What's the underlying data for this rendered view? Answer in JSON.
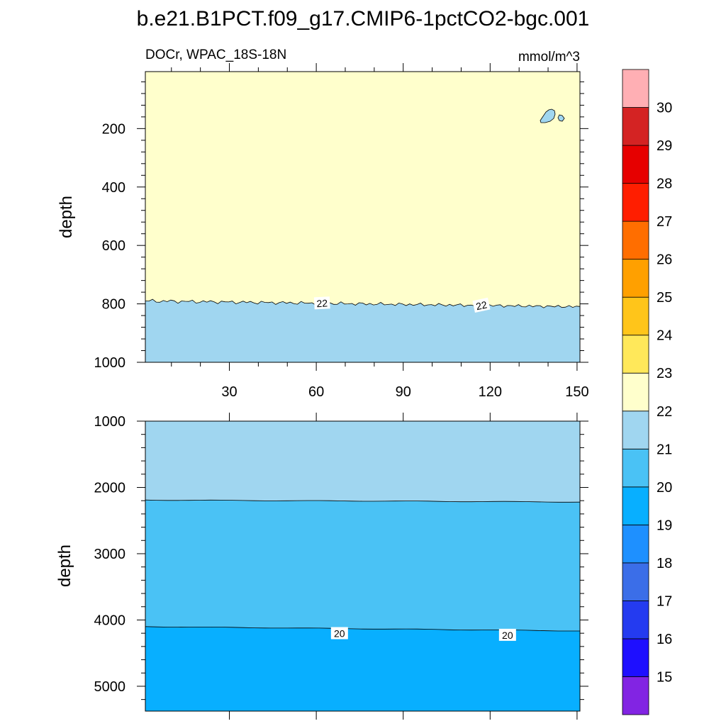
{
  "title": "b.e21.B1PCT.f09_g17.CMIP6-1pctCO2-bgc.001",
  "chart_data": [
    {
      "type": "contour",
      "left_label": "DOCr, WPAC_18S-18N",
      "right_label": "mmol/m^3",
      "ylabel": "depth",
      "x_ticks": [
        30,
        60,
        90,
        120,
        150
      ],
      "xlim": [
        1,
        151
      ],
      "y_ticks": [
        200,
        400,
        600,
        800,
        1000
      ],
      "ylim": [
        1000,
        5
      ],
      "y_inverted": true,
      "regions": [
        {
          "range": "22-23",
          "color": "#FFFFCC",
          "depth_from": 5,
          "depth_to": 795
        },
        {
          "range": "21-22",
          "color": "#A0D6F0",
          "depth_from": 795,
          "depth_to": 1000
        }
      ],
      "small_patch": {
        "range": "21-22",
        "x": 141,
        "depth": 160
      },
      "contour_lines": [
        {
          "value": 22,
          "depth_start": 790,
          "depth_end": 810,
          "labels": [
            "22",
            "22"
          ],
          "label_x": [
            62,
            117
          ]
        }
      ]
    },
    {
      "type": "contour",
      "ylabel": "depth",
      "y_ticks": [
        1000,
        2000,
        3000,
        4000,
        5000
      ],
      "ylim": [
        5375,
        1000
      ],
      "y_inverted": true,
      "regions": [
        {
          "range": "21-22",
          "color": "#A0D6F0",
          "depth_from": 1000,
          "depth_to": 2200
        },
        {
          "range": "20-21",
          "color": "#4AC2F5",
          "depth_from": 2200,
          "depth_to": 4120
        },
        {
          "range": "19-20",
          "color": "#08AFFF",
          "depth_from": 4120,
          "depth_to": 5375
        }
      ],
      "contour_lines": [
        {
          "value": 21,
          "depth_start": 2190,
          "depth_end": 2220,
          "labels": []
        },
        {
          "value": 20,
          "depth_start": 4100,
          "depth_end": 4165,
          "labels": [
            "20",
            "20"
          ],
          "label_x": [
            68,
            126
          ]
        }
      ]
    }
  ],
  "colorbar": {
    "labels": [
      "15",
      "16",
      "17",
      "18",
      "19",
      "20",
      "21",
      "22",
      "23",
      "24",
      "25",
      "26",
      "27",
      "28",
      "29",
      "30"
    ],
    "colors": [
      "#8224E3",
      "#1E0FFF",
      "#243BF0",
      "#3B6EE8",
      "#1E90FF",
      "#08AFFF",
      "#4AC2F5",
      "#A0D6F0",
      "#FFFFCC",
      "#FFE85A",
      "#FFC51A",
      "#FFA000",
      "#FF6E00",
      "#FF1E00",
      "#E60000",
      "#D42323",
      "#FFAFB4"
    ]
  }
}
